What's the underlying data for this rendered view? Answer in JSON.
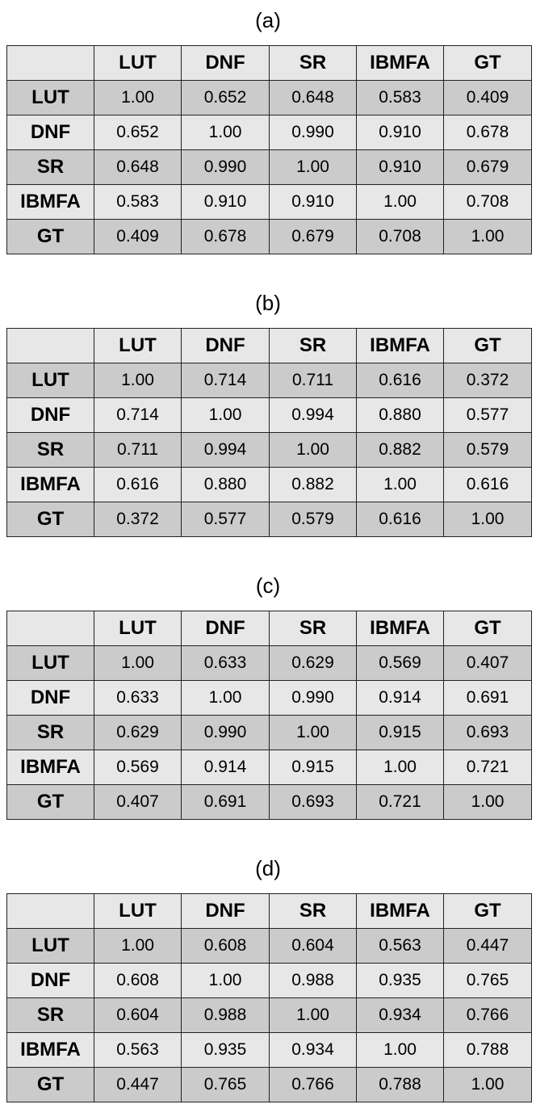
{
  "chart_data": [
    {
      "type": "table",
      "title": "(a)",
      "columns": [
        "LUT",
        "DNF",
        "SR",
        "IBMFA",
        "GT"
      ],
      "rows": [
        {
          "label": "LUT",
          "values": [
            "1.00",
            "0.652",
            "0.648",
            "0.583",
            "0.409"
          ]
        },
        {
          "label": "DNF",
          "values": [
            "0.652",
            "1.00",
            "0.990",
            "0.910",
            "0.678"
          ]
        },
        {
          "label": "SR",
          "values": [
            "0.648",
            "0.990",
            "1.00",
            "0.910",
            "0.679"
          ]
        },
        {
          "label": "IBMFA",
          "values": [
            "0.583",
            "0.910",
            "0.910",
            "1.00",
            "0.708"
          ]
        },
        {
          "label": "GT",
          "values": [
            "0.409",
            "0.678",
            "0.679",
            "0.708",
            "1.00"
          ]
        }
      ]
    },
    {
      "type": "table",
      "title": "(b)",
      "columns": [
        "LUT",
        "DNF",
        "SR",
        "IBMFA",
        "GT"
      ],
      "rows": [
        {
          "label": "LUT",
          "values": [
            "1.00",
            "0.714",
            "0.711",
            "0.616",
            "0.372"
          ]
        },
        {
          "label": "DNF",
          "values": [
            "0.714",
            "1.00",
            "0.994",
            "0.880",
            "0.577"
          ]
        },
        {
          "label": "SR",
          "values": [
            "0.711",
            "0.994",
            "1.00",
            "0.882",
            "0.579"
          ]
        },
        {
          "label": "IBMFA",
          "values": [
            "0.616",
            "0.880",
            "0.882",
            "1.00",
            "0.616"
          ]
        },
        {
          "label": "GT",
          "values": [
            "0.372",
            "0.577",
            "0.579",
            "0.616",
            "1.00"
          ]
        }
      ]
    },
    {
      "type": "table",
      "title": "(c)",
      "columns": [
        "LUT",
        "DNF",
        "SR",
        "IBMFA",
        "GT"
      ],
      "rows": [
        {
          "label": "LUT",
          "values": [
            "1.00",
            "0.633",
            "0.629",
            "0.569",
            "0.407"
          ]
        },
        {
          "label": "DNF",
          "values": [
            "0.633",
            "1.00",
            "0.990",
            "0.914",
            "0.691"
          ]
        },
        {
          "label": "SR",
          "values": [
            "0.629",
            "0.990",
            "1.00",
            "0.915",
            "0.693"
          ]
        },
        {
          "label": "IBMFA",
          "values": [
            "0.569",
            "0.914",
            "0.915",
            "1.00",
            "0.721"
          ]
        },
        {
          "label": "GT",
          "values": [
            "0.407",
            "0.691",
            "0.693",
            "0.721",
            "1.00"
          ]
        }
      ]
    },
    {
      "type": "table",
      "title": "(d)",
      "columns": [
        "LUT",
        "DNF",
        "SR",
        "IBMFA",
        "GT"
      ],
      "rows": [
        {
          "label": "LUT",
          "values": [
            "1.00",
            "0.608",
            "0.604",
            "0.563",
            "0.447"
          ]
        },
        {
          "label": "DNF",
          "values": [
            "0.608",
            "1.00",
            "0.988",
            "0.935",
            "0.765"
          ]
        },
        {
          "label": "SR",
          "values": [
            "0.604",
            "0.988",
            "1.00",
            "0.934",
            "0.766"
          ]
        },
        {
          "label": "IBMFA",
          "values": [
            "0.563",
            "0.935",
            "0.934",
            "1.00",
            "0.788"
          ]
        },
        {
          "label": "GT",
          "values": [
            "0.447",
            "0.765",
            "0.766",
            "0.788",
            "1.00"
          ]
        }
      ]
    }
  ],
  "colors": {
    "header_fill": "#e7e7e7",
    "row_dark_fill": "#cbcbcb",
    "row_light_fill": "#e7e7e7",
    "border": "#222222"
  }
}
